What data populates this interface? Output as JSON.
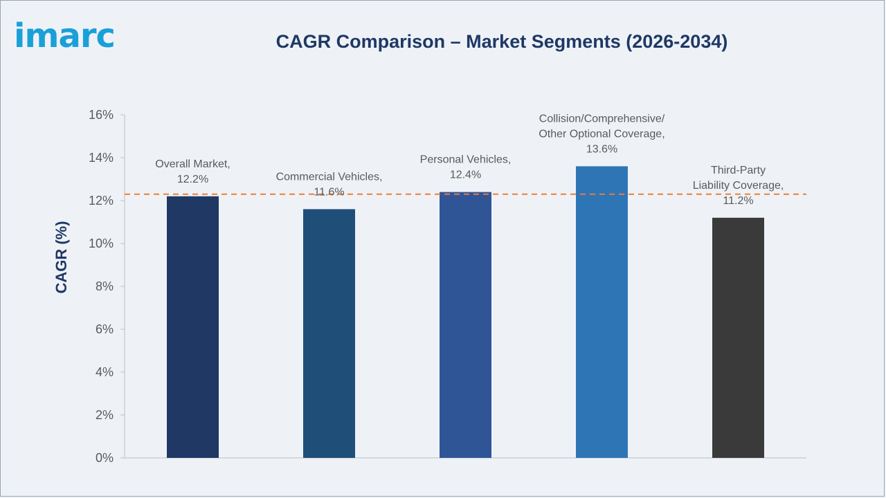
{
  "logo_text": "imarc",
  "chart_data": {
    "type": "bar",
    "title": "CAGR Comparison – Market Segments (2026-2034)",
    "ylabel": "CAGR (%)",
    "xlabel": "",
    "ylim": [
      0,
      16
    ],
    "yticks": [
      "0%",
      "2%",
      "4%",
      "6%",
      "8%",
      "10%",
      "12%",
      "14%",
      "16%"
    ],
    "categories": [
      "Overall Market",
      "Commercial Vehicles",
      "Personal Vehicles",
      "Collision/Comprehensive/ Other Optional Coverage",
      "Third-Party Liability Coverage"
    ],
    "values": [
      12.2,
      11.6,
      12.4,
      13.6,
      11.2
    ],
    "data_labels": [
      [
        "Overall Market,",
        "12.2%"
      ],
      [
        "Commercial Vehicles,",
        "11.6%"
      ],
      [
        "Personal Vehicles,",
        "12.4%"
      ],
      [
        "Collision/Comprehensive/",
        "Other Optional Coverage,",
        "13.6%"
      ],
      [
        "Third-Party",
        "Liability Coverage,",
        "11.2%"
      ]
    ],
    "colors": [
      "#203864",
      "#1f4e79",
      "#2f5597",
      "#2e75b6",
      "#3a3a3a"
    ],
    "reference_line": {
      "value": 12.3,
      "color": "#ed7d31",
      "style": "dashed"
    },
    "grid": false,
    "legend": "none"
  }
}
